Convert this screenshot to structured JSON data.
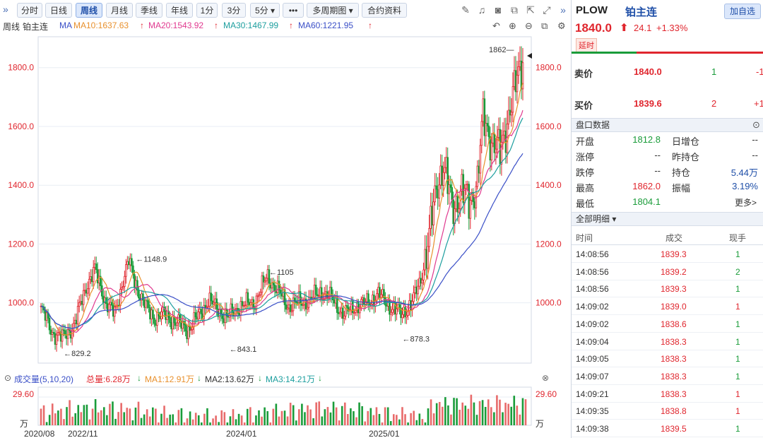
{
  "toolbar": {
    "expand_icon": "double-chevron-right-icon",
    "buttons": [
      "分时",
      "日线",
      "周线",
      "月线",
      "季线",
      "年线",
      "1分",
      "3分",
      "5分 ▾",
      "•••",
      "多周期图 ▾",
      "合约资料"
    ],
    "active": "周线",
    "right_icons": [
      "pencil-icon",
      "bell-icon",
      "camera-icon",
      "multi-window-icon",
      "popout-icon",
      "fullscreen-icon",
      "double-chevron-right-icon"
    ]
  },
  "ma_legend": {
    "period_label": "周线",
    "name": "铂主连",
    "ma_prefix": "MA",
    "ma10": "MA10:1637.63",
    "ma20": "MA20:1543.92",
    "ma30": "MA30:1467.99",
    "ma60": "MA60:1221.95",
    "colors": {
      "ma10": "#e8902c",
      "ma20": "#e0398f",
      "ma30": "#1c9e9e",
      "ma60": "#3a4fc7"
    },
    "icons": [
      "undo-icon",
      "zoom-in-icon",
      "zoom-out-icon",
      "copy-icon",
      "settings-icon"
    ]
  },
  "chart_data": {
    "type": "candlestick",
    "yticks": [
      "1800.0",
      "1600.0",
      "1400.0",
      "1200.0",
      "1000.0"
    ],
    "ylim": [
      795,
      1905
    ],
    "annotations": [
      {
        "label": "1862",
        "value": 1862,
        "kind": "high"
      },
      {
        "label": "1148.9",
        "value": 1148.9,
        "kind": "high"
      },
      {
        "label": "1105",
        "value": 1105,
        "kind": "high"
      },
      {
        "label": "829.2",
        "value": 829.2,
        "kind": "low"
      },
      {
        "label": "843.1",
        "value": 843.1,
        "kind": "low"
      },
      {
        "label": "878.3",
        "value": 878.3,
        "kind": "low"
      }
    ],
    "xlabels": [
      "2020/08",
      "2022/11",
      "2024/01",
      "2025/01"
    ],
    "up_color": "#e0262e",
    "down_color": "#1a9c3a",
    "ma_colors": {
      "ma10": "#e8902c",
      "ma20": "#e0398f",
      "ma30": "#1c9e9e",
      "ma60": "#3a4fc7"
    }
  },
  "volume": {
    "title": "成交量(5,10,20)",
    "total": "总量:6.28万",
    "ma1": "MA1:12.91万",
    "ma2": "MA2:13.62万",
    "ma3": "MA3:14.21万",
    "top_label": "29.60",
    "unit": "万",
    "close_icon": "close-circle-icon"
  },
  "quote": {
    "code": "PLOW",
    "name": "铂主连",
    "add_button": "加自选",
    "price": "1840.0",
    "change": "24.1",
    "change_pct": "+1.33%",
    "delay_tag": "延时",
    "sell": {
      "label": "卖价",
      "price": "1840.0",
      "vol": "1",
      "delta": "-1"
    },
    "buy": {
      "label": "买价",
      "price": "1839.6",
      "vol": "2",
      "delta": "+1"
    },
    "panel_title": "盘口数据",
    "stats": [
      {
        "k1": "开盘",
        "v1": "1812.8",
        "k2": "日增仓",
        "v2": "--"
      },
      {
        "k1": "涨停",
        "v1": "--",
        "k2": "昨持仓",
        "v2": "--"
      },
      {
        "k1": "跌停",
        "v1": "--",
        "k2": "持仓",
        "v2": "5.44万"
      },
      {
        "k1": "最高",
        "v1": "1862.0",
        "k2": "振幅",
        "v2": "3.19%"
      },
      {
        "k1": "最低",
        "v1": "1804.1",
        "k2": "",
        "v2": "更多>"
      }
    ],
    "ticks_title": "全部明细 ▾",
    "ticks_header": [
      "时间",
      "成交",
      "现手"
    ],
    "ticks": [
      {
        "time": "14:08:56",
        "price": "1839.3",
        "vol": "1",
        "dir": "sell"
      },
      {
        "time": "14:08:56",
        "price": "1839.2",
        "vol": "2",
        "dir": "sell"
      },
      {
        "time": "14:08:56",
        "price": "1839.3",
        "vol": "1",
        "dir": "sell"
      },
      {
        "time": "14:09:02",
        "price": "1839.0",
        "vol": "1",
        "dir": "buy"
      },
      {
        "time": "14:09:02",
        "price": "1838.6",
        "vol": "1",
        "dir": "sell"
      },
      {
        "time": "14:09:04",
        "price": "1838.3",
        "vol": "1",
        "dir": "sell"
      },
      {
        "time": "14:09:05",
        "price": "1838.3",
        "vol": "1",
        "dir": "sell"
      },
      {
        "time": "14:09:07",
        "price": "1838.3",
        "vol": "1",
        "dir": "sell"
      },
      {
        "time": "14:09:21",
        "price": "1838.3",
        "vol": "1",
        "dir": "buy"
      },
      {
        "time": "14:09:35",
        "price": "1838.8",
        "vol": "1",
        "dir": "buy"
      },
      {
        "time": "14:09:38",
        "price": "1839.5",
        "vol": "1",
        "dir": "sell"
      }
    ]
  }
}
